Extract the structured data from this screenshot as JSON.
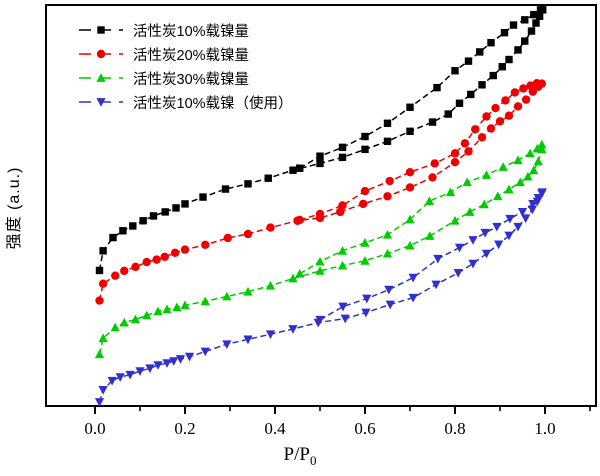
{
  "figure": {
    "background": "#ffffff",
    "frame_color": "#000000"
  },
  "axes": {
    "y_label": "强度 (a.u.)",
    "x_label_main": "P/P",
    "x_label_sub": "0"
  },
  "legend": {
    "items": [
      {
        "label": "活性炭10%载镍量",
        "color": "#000000",
        "marker": "square"
      },
      {
        "label": "活性炭20%载镍量",
        "color": "#ee0000",
        "marker": "circle"
      },
      {
        "label": "活性炭30%载镍量",
        "color": "#00cc00",
        "marker": "triangle-up"
      },
      {
        "label": "活性炭10%载镍（使用）",
        "color": "#3030cc",
        "marker": "triangle-down"
      }
    ]
  },
  "chart_data": {
    "type": "line",
    "title": "",
    "xlabel": "P/P0",
    "ylabel": "强度 (a.u.)",
    "xlim": [
      -0.11,
      1.115
    ],
    "ylim": [
      0,
      105
    ],
    "x_major_ticks": [
      {
        "value": 0.0,
        "label": "0.0"
      },
      {
        "value": 0.2,
        "label": "0.2"
      },
      {
        "value": 0.4,
        "label": "0.4"
      },
      {
        "value": 0.6,
        "label": "0.6"
      },
      {
        "value": 0.8,
        "label": "0.8"
      },
      {
        "value": 1.0,
        "label": "1.0"
      }
    ],
    "x_minor_ticks": [
      0.1,
      0.3,
      0.5,
      0.7,
      0.9,
      1.1
    ],
    "y_ticks": [],
    "grid": false,
    "legend_position": "top-left",
    "note": "Nitrogen adsorption-desorption isotherms; y values in arbitrary units (0-100 of plot height)",
    "series": [
      {
        "name": "活性炭10%载镍量",
        "color": "#000000",
        "marker": "square",
        "adsorption": [
          [
            0.01,
            33.8
          ],
          [
            0.018,
            38.7
          ],
          [
            0.04,
            42.0
          ],
          [
            0.062,
            43.7
          ],
          [
            0.084,
            44.9
          ],
          [
            0.107,
            46.2
          ],
          [
            0.13,
            47.4
          ],
          [
            0.156,
            48.4
          ],
          [
            0.18,
            49.4
          ],
          [
            0.2,
            50.4
          ],
          [
            0.24,
            52.1
          ],
          [
            0.29,
            54.1
          ],
          [
            0.34,
            55.4
          ],
          [
            0.385,
            56.8
          ],
          [
            0.44,
            58.8
          ],
          [
            0.5,
            60.5
          ],
          [
            0.55,
            62.0
          ],
          [
            0.6,
            64.0
          ],
          [
            0.65,
            66.0
          ],
          [
            0.7,
            68.5
          ],
          [
            0.75,
            70.8
          ],
          [
            0.785,
            72.8
          ],
          [
            0.81,
            75.5
          ],
          [
            0.835,
            77.7
          ],
          [
            0.86,
            80.1
          ],
          [
            0.885,
            82.4
          ],
          [
            0.905,
            84.6
          ],
          [
            0.92,
            86.4
          ],
          [
            0.94,
            88.8
          ],
          [
            0.955,
            91.0
          ],
          [
            0.97,
            93.5
          ],
          [
            0.98,
            95.5
          ],
          [
            0.988,
            97.2
          ],
          [
            0.995,
            98.8
          ]
        ],
        "desorption": [
          [
            0.455,
            59.3
          ],
          [
            0.5,
            62.3
          ],
          [
            0.55,
            64.5
          ],
          [
            0.6,
            67.2
          ],
          [
            0.65,
            70.5
          ],
          [
            0.7,
            74.5
          ],
          [
            0.76,
            79.4
          ],
          [
            0.8,
            83.6
          ],
          [
            0.83,
            86.0
          ],
          [
            0.855,
            88.3
          ],
          [
            0.88,
            90.6
          ],
          [
            0.91,
            93.1
          ],
          [
            0.93,
            95.0
          ],
          [
            0.955,
            96.3
          ],
          [
            0.975,
            97.6
          ],
          [
            0.99,
            98.8
          ]
        ]
      },
      {
        "name": "活性炭20%载镍量",
        "color": "#ee0000",
        "marker": "circle",
        "adsorption": [
          [
            0.01,
            26.3
          ],
          [
            0.018,
            30.5
          ],
          [
            0.045,
            32.5
          ],
          [
            0.065,
            33.7
          ],
          [
            0.09,
            34.7
          ],
          [
            0.115,
            35.9
          ],
          [
            0.137,
            36.5
          ],
          [
            0.155,
            37.2
          ],
          [
            0.178,
            38.2
          ],
          [
            0.2,
            39.0
          ],
          [
            0.245,
            40.2
          ],
          [
            0.295,
            41.9
          ],
          [
            0.34,
            42.9
          ],
          [
            0.39,
            44.5
          ],
          [
            0.45,
            46.2
          ],
          [
            0.5,
            46.9
          ],
          [
            0.545,
            48.4
          ],
          [
            0.596,
            50.4
          ],
          [
            0.65,
            52.3
          ],
          [
            0.7,
            54.5
          ],
          [
            0.75,
            57.0
          ],
          [
            0.8,
            60.8
          ],
          [
            0.83,
            63.5
          ],
          [
            0.86,
            67.0
          ],
          [
            0.88,
            69.2
          ],
          [
            0.9,
            71.0
          ],
          [
            0.92,
            72.4
          ],
          [
            0.94,
            74.7
          ],
          [
            0.958,
            76.4
          ],
          [
            0.973,
            78.4
          ],
          [
            0.985,
            79.6
          ],
          [
            0.993,
            80.4
          ]
        ],
        "desorption": [
          [
            0.455,
            46.4
          ],
          [
            0.5,
            47.9
          ],
          [
            0.55,
            50.0
          ],
          [
            0.6,
            53.6
          ],
          [
            0.655,
            56.1
          ],
          [
            0.7,
            58.3
          ],
          [
            0.755,
            60.5
          ],
          [
            0.8,
            63.0
          ],
          [
            0.822,
            65.5
          ],
          [
            0.845,
            69.0
          ],
          [
            0.87,
            72.2
          ],
          [
            0.89,
            74.3
          ],
          [
            0.912,
            76.2
          ],
          [
            0.933,
            78.2
          ],
          [
            0.952,
            79.2
          ],
          [
            0.968,
            79.9
          ],
          [
            0.982,
            80.5
          ]
        ]
      },
      {
        "name": "活性炭30%载镍量",
        "color": "#00cc00",
        "marker": "triangle-up",
        "adsorption": [
          [
            0.01,
            12.9
          ],
          [
            0.018,
            16.9
          ],
          [
            0.045,
            19.6
          ],
          [
            0.065,
            20.8
          ],
          [
            0.09,
            21.6
          ],
          [
            0.115,
            22.6
          ],
          [
            0.14,
            23.6
          ],
          [
            0.16,
            24.1
          ],
          [
            0.182,
            24.6
          ],
          [
            0.2,
            25.1
          ],
          [
            0.245,
            26.1
          ],
          [
            0.293,
            27.3
          ],
          [
            0.34,
            28.5
          ],
          [
            0.39,
            30.0
          ],
          [
            0.44,
            31.8
          ],
          [
            0.5,
            33.7
          ],
          [
            0.55,
            35.0
          ],
          [
            0.6,
            36.2
          ],
          [
            0.65,
            38.0
          ],
          [
            0.7,
            40.0
          ],
          [
            0.744,
            42.4
          ],
          [
            0.8,
            46.2
          ],
          [
            0.833,
            48.4
          ],
          [
            0.865,
            50.3
          ],
          [
            0.895,
            52.3
          ],
          [
            0.92,
            54.0
          ],
          [
            0.945,
            55.8
          ],
          [
            0.962,
            57.2
          ],
          [
            0.975,
            58.8
          ],
          [
            0.985,
            61.0
          ],
          [
            0.993,
            64.0
          ]
        ],
        "desorption": [
          [
            0.455,
            33.0
          ],
          [
            0.5,
            36.0
          ],
          [
            0.55,
            38.7
          ],
          [
            0.6,
            40.7
          ],
          [
            0.65,
            42.7
          ],
          [
            0.7,
            46.5
          ],
          [
            0.743,
            51.1
          ],
          [
            0.79,
            53.3
          ],
          [
            0.827,
            55.8
          ],
          [
            0.87,
            57.6
          ],
          [
            0.907,
            59.6
          ],
          [
            0.94,
            61.3
          ],
          [
            0.967,
            63.0
          ],
          [
            0.983,
            64.2
          ],
          [
            0.993,
            65.2
          ]
        ]
      },
      {
        "name": "活性炭10%载镍（使用）",
        "color": "#3030cc",
        "marker": "triangle-down",
        "adsorption": [
          [
            0.01,
            1.0
          ],
          [
            0.018,
            4.0
          ],
          [
            0.038,
            6.3
          ],
          [
            0.056,
            7.2
          ],
          [
            0.078,
            7.8
          ],
          [
            0.1,
            8.7
          ],
          [
            0.122,
            9.4
          ],
          [
            0.14,
            10.2
          ],
          [
            0.16,
            10.7
          ],
          [
            0.175,
            11.2
          ],
          [
            0.19,
            11.7
          ],
          [
            0.21,
            12.3
          ],
          [
            0.245,
            13.6
          ],
          [
            0.293,
            15.4
          ],
          [
            0.34,
            16.6
          ],
          [
            0.39,
            17.9
          ],
          [
            0.44,
            19.2
          ],
          [
            0.496,
            20.8
          ],
          [
            0.556,
            21.8
          ],
          [
            0.602,
            23.3
          ],
          [
            0.656,
            25.3
          ],
          [
            0.707,
            27.0
          ],
          [
            0.758,
            30.3
          ],
          [
            0.807,
            33.2
          ],
          [
            0.84,
            35.5
          ],
          [
            0.87,
            38.0
          ],
          [
            0.897,
            40.3
          ],
          [
            0.92,
            42.5
          ],
          [
            0.94,
            44.7
          ],
          [
            0.957,
            46.8
          ],
          [
            0.972,
            49.0
          ],
          [
            0.983,
            51.0
          ],
          [
            0.993,
            53.0
          ]
        ],
        "desorption": [
          [
            0.5,
            21.5
          ],
          [
            0.551,
            24.8
          ],
          [
            0.604,
            26.8
          ],
          [
            0.653,
            29.0
          ],
          [
            0.707,
            32.0
          ],
          [
            0.762,
            36.7
          ],
          [
            0.81,
            39.5
          ],
          [
            0.84,
            41.4
          ],
          [
            0.867,
            43.2
          ],
          [
            0.893,
            44.7
          ],
          [
            0.922,
            46.7
          ],
          [
            0.95,
            48.4
          ],
          [
            0.973,
            50.4
          ],
          [
            0.985,
            51.9
          ],
          [
            0.994,
            53.3
          ]
        ]
      }
    ]
  }
}
